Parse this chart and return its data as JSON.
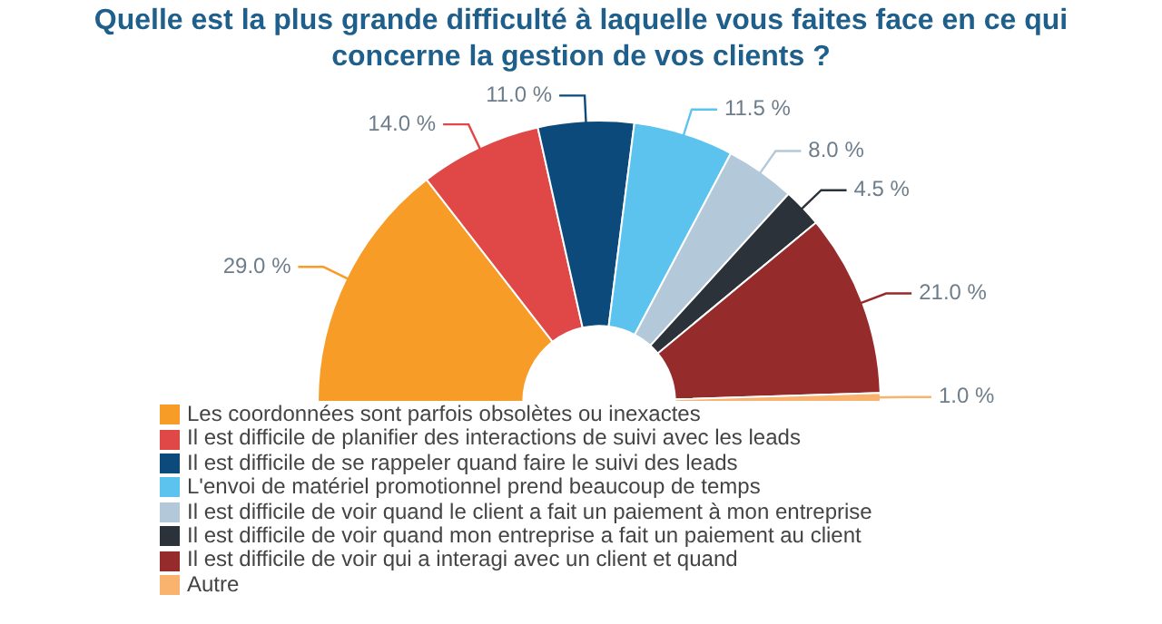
{
  "chart_data": {
    "type": "donut",
    "title": "Quelle est la plus grande difficulté à laquelle vous faites face en ce qui concerne la gestion de vos clients ?",
    "categories": [
      "Les coordonnées sont parfois obsolètes ou inexactes",
      "Il est difficile de planifier des interactions de suivi avec les leads",
      "Il est difficile de se rappeler quand faire le suivi des leads",
      "L'envoi de matériel promotionnel prend beaucoup de temps",
      "Il est difficile de voir quand le client a fait un paiement à mon entreprise",
      "Il est difficile de voir quand mon entreprise a fait un paiement au client",
      "Il est difficile de voir qui a interagi avec un client et quand",
      "Autre"
    ],
    "values": [
      29.0,
      14.0,
      11.0,
      11.5,
      8.0,
      4.5,
      21.0,
      1.0
    ],
    "colors": [
      "#f89c28",
      "#e04848",
      "#0b4a7b",
      "#5cc3ee",
      "#b3c9da",
      "#2c323a",
      "#952b2b",
      "#f9b36e"
    ],
    "value_labels": [
      "29.0 %",
      "14.0 %",
      "11.0 %",
      "11.5 %",
      "8.0 %",
      "4.5 %",
      "21.0 %",
      "1.0 %"
    ],
    "legend": "bottom left"
  }
}
